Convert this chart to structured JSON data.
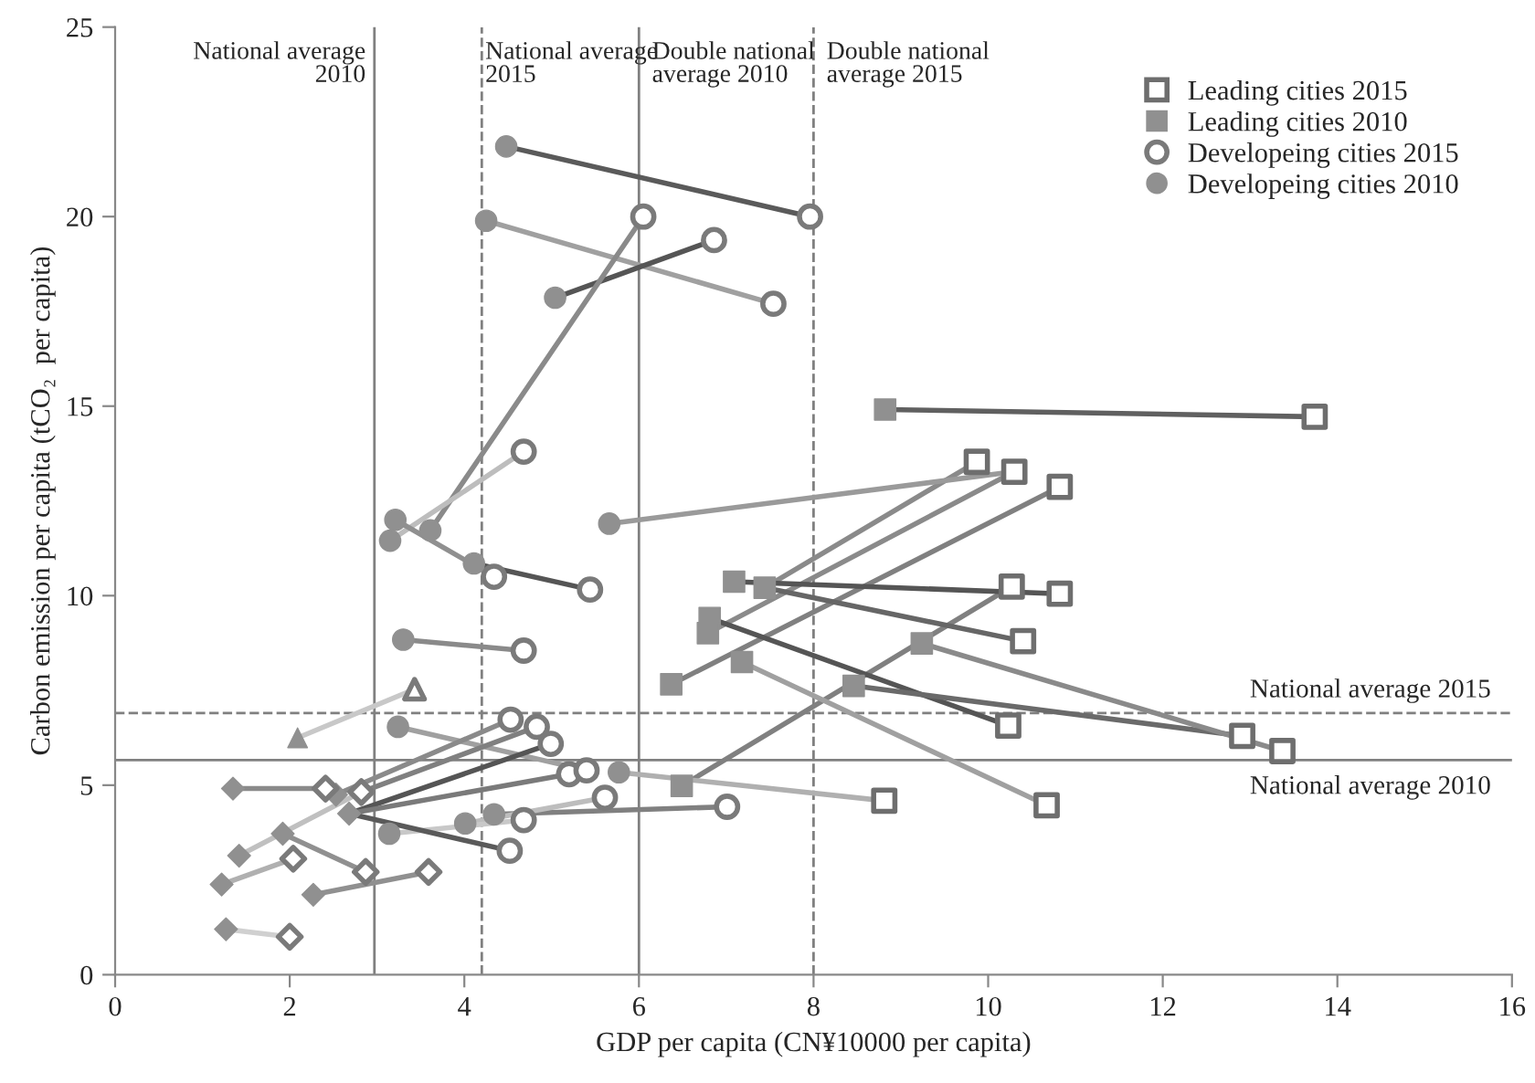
{
  "chart_data": {
    "type": "scatter",
    "xlabel": "GDP per capita (CN¥10000 per capita)",
    "ylabel": "Carbon emission per capita (tCO₂  per capita)",
    "xlim": [
      0,
      16
    ],
    "xticks": [
      0,
      2,
      4,
      6,
      8,
      10,
      12,
      14,
      16
    ],
    "ylim": [
      0,
      25
    ],
    "yticks": [
      0,
      5,
      10,
      15,
      20,
      25
    ],
    "grid": false,
    "legend": "top right",
    "ref_lines": [
      {
        "axis": "x",
        "value": 2.97,
        "label": "National average\n2010",
        "color": "#808080",
        "line_style": "solid"
      },
      {
        "axis": "x",
        "value": 4.2,
        "label": "National average\n2015",
        "color": "#808080",
        "line_style": "dashed"
      },
      {
        "axis": "x",
        "value": 6.0,
        "label": "Double national\naverage 2010",
        "color": "#808080",
        "line_style": "solid"
      },
      {
        "axis": "x",
        "value": 8.0,
        "label": "Double national\naverage 2015",
        "color": "#808080",
        "line_style": "dashed"
      },
      {
        "axis": "y",
        "value": 6.9,
        "label": "National average 2015",
        "color": "#808080",
        "line_style": "dashed"
      },
      {
        "axis": "y",
        "value": 5.66,
        "label": "National average 2010",
        "color": "#808080",
        "line_style": "solid"
      }
    ],
    "series": [
      {
        "type": "line",
        "color": "#606060",
        "x": [
          8.82,
          13.74
        ],
        "values": [
          14.91,
          14.72
        ]
      },
      {
        "type": "line",
        "color": "#8a8a8a",
        "x": [
          7.44,
          9.87
        ],
        "values": [
          10.21,
          13.53
        ]
      },
      {
        "type": "line",
        "color": "#8a8a8a",
        "x": [
          6.79,
          10.3
        ],
        "values": [
          9.01,
          13.27
        ]
      },
      {
        "type": "line",
        "color": "#808080",
        "x": [
          6.37,
          10.82
        ],
        "values": [
          7.66,
          12.87
        ]
      },
      {
        "type": "line",
        "color": "#808080",
        "x": [
          6.49,
          10.27
        ],
        "values": [
          4.98,
          10.24
        ]
      },
      {
        "type": "line",
        "color": "#555555",
        "x": [
          7.09,
          10.82
        ],
        "values": [
          10.37,
          10.05
        ]
      },
      {
        "type": "line",
        "color": "#666666",
        "x": [
          7.44,
          10.4
        ],
        "values": [
          10.21,
          8.8
        ]
      },
      {
        "type": "line",
        "color": "#555555",
        "x": [
          6.81,
          10.23
        ],
        "values": [
          9.41,
          6.57
        ]
      },
      {
        "type": "line",
        "color": "#6a6a6a",
        "x": [
          8.46,
          12.91
        ],
        "values": [
          7.62,
          6.3
        ]
      },
      {
        "type": "line",
        "color": "#8a8a8a",
        "x": [
          9.24,
          13.37
        ],
        "values": [
          8.74,
          5.9
        ]
      },
      {
        "type": "line",
        "color": "#a0a0a0",
        "x": [
          7.18,
          10.67
        ],
        "values": [
          8.25,
          4.47
        ]
      },
      {
        "type": "line",
        "color": "#b0b0b0",
        "x": [
          5.77,
          8.81
        ],
        "values": [
          5.34,
          4.59
        ]
      },
      {
        "type": "line",
        "color": "#9a9a9a",
        "x": [
          5.66,
          10.3
        ],
        "values": [
          11.9,
          13.27
        ]
      },
      {
        "type": "line",
        "color": "#5a5a5a",
        "x": [
          4.48,
          7.96
        ],
        "values": [
          21.85,
          20.0
        ]
      },
      {
        "type": "line",
        "color": "#a0a0a0",
        "x": [
          4.25,
          7.54
        ],
        "values": [
          19.89,
          17.7
        ]
      },
      {
        "type": "line",
        "color": "#555555",
        "x": [
          5.04,
          6.86
        ],
        "values": [
          17.86,
          19.38
        ]
      },
      {
        "type": "line",
        "color": "#8a8a8a",
        "x": [
          3.61,
          6.05
        ],
        "values": [
          11.72,
          20.0
        ]
      },
      {
        "type": "line",
        "color": "#bdbdbd",
        "x": [
          3.15,
          4.68
        ],
        "values": [
          11.45,
          13.8
        ]
      },
      {
        "type": "line",
        "color": "#909090",
        "x": [
          3.21,
          4.34
        ],
        "values": [
          12.0,
          10.5
        ]
      },
      {
        "type": "line",
        "color": "#555555",
        "x": [
          4.11,
          5.44
        ],
        "values": [
          10.85,
          10.16
        ]
      },
      {
        "type": "line",
        "color": "#8a8a8a",
        "x": [
          3.3,
          4.68
        ],
        "values": [
          8.84,
          8.55
        ]
      },
      {
        "type": "line",
        "color": "#a0a0a0",
        "x": [
          3.24,
          5.4
        ],
        "values": [
          6.54,
          5.39
        ]
      },
      {
        "type": "line",
        "color": "#808080",
        "x": [
          4.34,
          7.01
        ],
        "values": [
          4.23,
          4.43
        ]
      },
      {
        "type": "line",
        "color": "#bdbdbd",
        "x": [
          4.01,
          5.61
        ],
        "values": [
          3.99,
          4.67
        ]
      },
      {
        "type": "line",
        "color": "#c8c8c8",
        "x": [
          3.14,
          4.68
        ],
        "values": [
          3.72,
          4.08
        ]
      },
      {
        "type": "line",
        "color": "#8a8a8a",
        "x": [
          1.35,
          2.41
        ],
        "values": [
          4.91,
          4.91
        ]
      },
      {
        "type": "line",
        "color": "#8a8a8a",
        "x": [
          2.53,
          4.53
        ],
        "values": [
          4.75,
          6.73
        ]
      },
      {
        "type": "line",
        "color": "#808080",
        "x": [
          2.82,
          4.83
        ],
        "values": [
          4.82,
          6.54
        ]
      },
      {
        "type": "line",
        "color": "#555555",
        "x": [
          2.68,
          4.99
        ],
        "values": [
          4.25,
          6.09
        ]
      },
      {
        "type": "line",
        "color": "#7a7a7a",
        "x": [
          2.68,
          5.2
        ],
        "values": [
          4.25,
          5.29
        ]
      },
      {
        "type": "line",
        "color": "#5a5a5a",
        "x": [
          2.68,
          4.52
        ],
        "values": [
          4.25,
          3.27
        ]
      },
      {
        "type": "line",
        "color": "#c0c0c0",
        "x": [
          1.42,
          2.82
        ],
        "values": [
          3.14,
          4.82
        ]
      },
      {
        "type": "line",
        "color": "#909090",
        "x": [
          1.92,
          2.87
        ],
        "values": [
          3.72,
          2.71
        ]
      },
      {
        "type": "line",
        "color": "#b0b0b0",
        "x": [
          1.22,
          2.04
        ],
        "values": [
          2.38,
          3.06
        ]
      },
      {
        "type": "line",
        "color": "#909090",
        "x": [
          2.27,
          3.59
        ],
        "values": [
          2.11,
          2.71
        ]
      },
      {
        "type": "line",
        "color": "#d0d0d0",
        "x": [
          1.27,
          2.0
        ],
        "values": [
          1.2,
          1.0
        ]
      },
      {
        "type": "line",
        "color": "#c8c8c8",
        "x": [
          2.09,
          3.43
        ],
        "values": [
          6.25,
          7.53
        ]
      },
      {
        "type": "scatter",
        "name": "Leading cities 2015",
        "marker": "square-open",
        "color": "#6e6e6e",
        "x": [
          13.74,
          9.87,
          10.3,
          10.82,
          10.27,
          10.82,
          10.4,
          10.23,
          12.91,
          13.37,
          10.67,
          8.81
        ],
        "values": [
          14.72,
          13.53,
          13.27,
          12.87,
          10.24,
          10.05,
          8.8,
          6.57,
          6.3,
          5.9,
          4.47,
          4.59
        ]
      },
      {
        "type": "scatter",
        "name": "Leading cities 2010",
        "marker": "square",
        "color": "#909090",
        "x": [
          8.82,
          7.09,
          7.44,
          6.81,
          6.79,
          6.37,
          7.18,
          9.24,
          8.46,
          6.49
        ],
        "values": [
          14.91,
          10.37,
          10.21,
          9.41,
          9.01,
          7.66,
          8.25,
          8.74,
          7.62,
          4.98
        ]
      },
      {
        "type": "scatter",
        "name": "Developeing cities 2015",
        "marker": "circle-open",
        "color": "#7a7a7a",
        "x": [
          7.96,
          7.54,
          6.86,
          6.05,
          4.68,
          4.34,
          5.44,
          4.68,
          4.53,
          4.83,
          4.99,
          5.2,
          5.4,
          5.61,
          4.68,
          4.52,
          7.01
        ],
        "values": [
          20.0,
          17.7,
          19.38,
          20.0,
          13.8,
          10.5,
          10.16,
          8.55,
          6.73,
          6.54,
          6.09,
          5.29,
          5.39,
          4.67,
          4.08,
          3.27,
          4.43
        ]
      },
      {
        "type": "scatter",
        "name": "Developeing cities 2010",
        "marker": "circle",
        "color": "#909090",
        "x": [
          4.48,
          4.25,
          5.04,
          3.61,
          3.15,
          3.21,
          4.11,
          5.66,
          3.3,
          3.24,
          5.77,
          4.34,
          4.01,
          3.14
        ],
        "values": [
          21.85,
          19.89,
          17.86,
          11.72,
          11.45,
          12.0,
          10.85,
          11.9,
          8.84,
          6.54,
          5.34,
          4.23,
          3.99,
          3.72
        ]
      },
      {
        "type": "scatter",
        "marker": "diamond",
        "color": "#909090",
        "x": [
          1.35,
          2.53,
          2.68,
          1.42,
          1.92,
          1.22,
          2.27,
          1.27
        ],
        "values": [
          4.91,
          4.75,
          4.25,
          3.14,
          3.72,
          2.38,
          2.11,
          1.2
        ]
      },
      {
        "type": "scatter",
        "marker": "diamond-open",
        "color": "#7a7a7a",
        "x": [
          2.41,
          2.82,
          2.87,
          2.04,
          3.59,
          2.0
        ],
        "values": [
          4.91,
          4.82,
          2.71,
          3.06,
          2.71,
          1.0
        ]
      },
      {
        "type": "scatter",
        "marker": "triangle",
        "color": "#909090",
        "x": [
          2.09
        ],
        "values": [
          6.25
        ]
      },
      {
        "type": "scatter",
        "marker": "triangle-open",
        "color": "#7a7a7a",
        "x": [
          3.43
        ],
        "values": [
          7.53
        ]
      }
    ]
  }
}
